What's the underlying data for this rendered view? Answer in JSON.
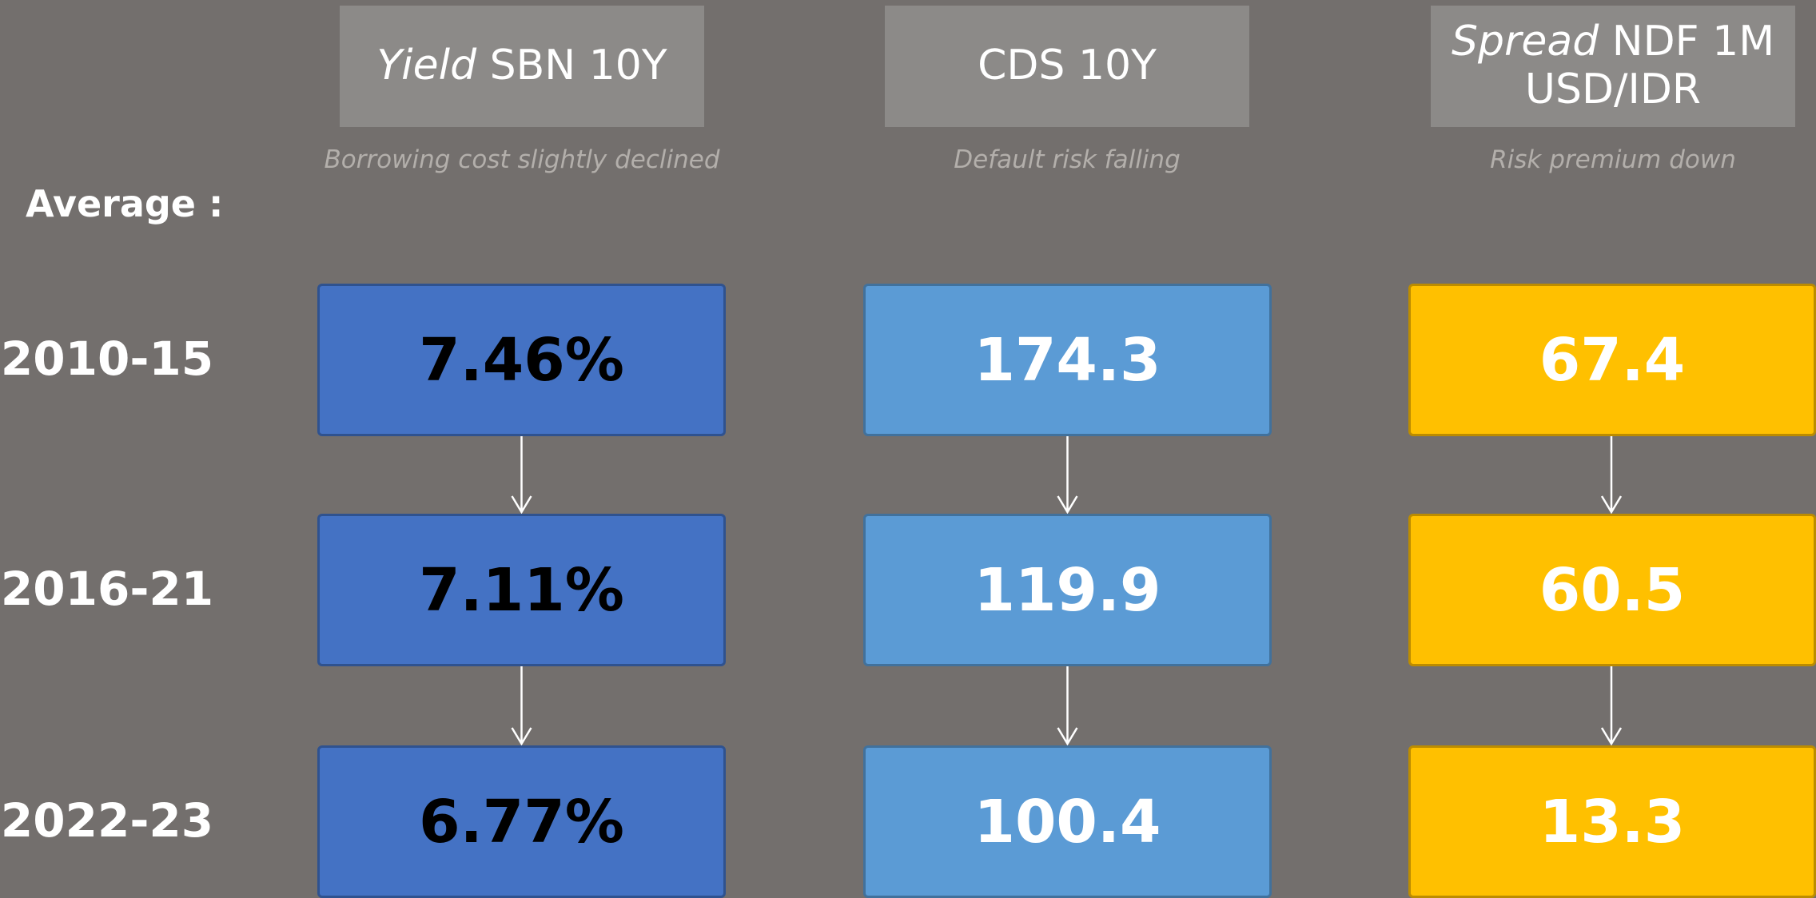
{
  "average_label": "Average :",
  "rows": [
    "2010-15",
    "2016-21",
    "2022-23"
  ],
  "columns": [
    {
      "title_italic": "Yield",
      "title": "SBN 10Y",
      "subtitle": "Borrowing cost slightly declined",
      "values": [
        "7.46%",
        "7.11%",
        "6.77%"
      ]
    },
    {
      "title_italic": "",
      "title": "CDS 10Y",
      "subtitle": "Default risk falling",
      "values": [
        "174.3",
        "119.9",
        "100.4"
      ]
    },
    {
      "title_italic": "Spread",
      "title": "NDF 1M USD/IDR",
      "subtitle": "Risk premium down",
      "values": [
        "67.4",
        "60.5",
        "13.3"
      ]
    }
  ]
}
